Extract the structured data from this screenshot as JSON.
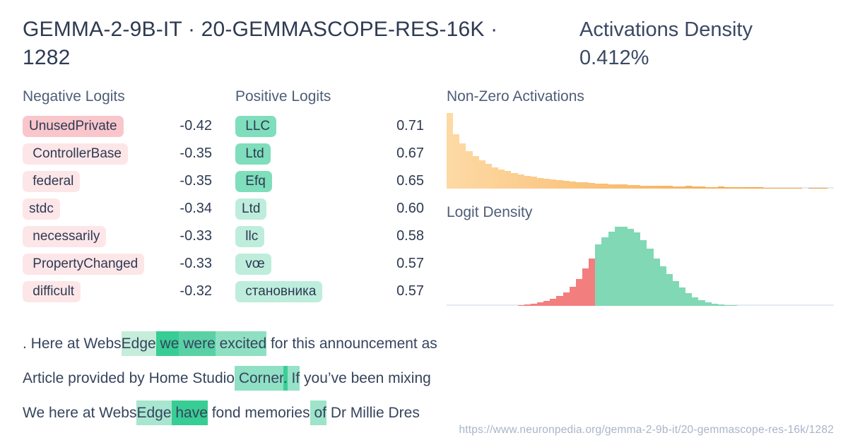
{
  "header": {
    "title": "GEMMA-2-9B-IT · 20-GEMMASCOPE-RES-16K · 1282",
    "density": "Activations Density 0.412%"
  },
  "colors": {
    "neg_chip_strong": "#F9C6CC",
    "neg_chip_light": "#FDE6E8",
    "pos_chip_strong": "#7FDEBC",
    "pos_chip_light": "#BEEDDC",
    "orange_start": "#FDD9A5",
    "orange_end": "#F49B33",
    "red_bar": "#F37E7E",
    "green_bar": "#80D8B4",
    "baseline": "#E4E9F1",
    "title_text": "#2E3A52",
    "section_text": "#4E5D78",
    "url_text": "#A8B5C7"
  },
  "negative_logits": {
    "title": "Negative Logits",
    "items": [
      {
        "token": "UnusedPrivate",
        "value": "-0.42",
        "strong": true
      },
      {
        "token": " ControllerBase",
        "value": "-0.35",
        "strong": false
      },
      {
        "token": " federal",
        "value": "-0.35",
        "strong": false
      },
      {
        "token": "stdc",
        "value": "-0.34",
        "strong": false
      },
      {
        "token": " necessarily",
        "value": "-0.33",
        "strong": false
      },
      {
        "token": " PropertyChanged",
        "value": "-0.33",
        "strong": false
      },
      {
        "token": " difficult",
        "value": "-0.32",
        "strong": false
      }
    ]
  },
  "positive_logits": {
    "title": "Positive Logits",
    "items": [
      {
        "token": " LLC",
        "value": "0.71",
        "strong": true
      },
      {
        "token": " Ltd",
        "value": "0.67",
        "strong": true
      },
      {
        "token": " Efq",
        "value": "0.65",
        "strong": true
      },
      {
        "token": "Ltd",
        "value": "0.60",
        "strong": false
      },
      {
        "token": " llc",
        "value": "0.58",
        "strong": false
      },
      {
        "token": " vœ",
        "value": "0.57",
        "strong": false
      },
      {
        "token": " становника",
        "value": "0.57",
        "strong": false
      }
    ]
  },
  "chart_data": [
    {
      "type": "bar",
      "title": "Non-Zero Activations",
      "ylim": [
        0,
        1
      ],
      "grid": false,
      "color_gradient": [
        "#FDD9A5",
        "#F49B33"
      ],
      "values": [
        1.0,
        0.72,
        0.6,
        0.5,
        0.43,
        0.375,
        0.325,
        0.285,
        0.255,
        0.23,
        0.205,
        0.185,
        0.17,
        0.155,
        0.142,
        0.13,
        0.12,
        0.11,
        0.102,
        0.094,
        0.087,
        0.08,
        0.075,
        0.07,
        0.065,
        0.06,
        0.056,
        0.052,
        0.048,
        0.045,
        0.042,
        0.04,
        0.037,
        0.035,
        0.033,
        0.031,
        0.029,
        0.034,
        0.027,
        0.025,
        0.023,
        0.022,
        0.027,
        0.02,
        0.019,
        0.018,
        0.017,
        0.016,
        0.015,
        0.014,
        0.013,
        0.013,
        0.012,
        0.012,
        0.011,
        0,
        0.013,
        0.013,
        0.013,
        0
      ]
    },
    {
      "type": "bar",
      "title": "Logit Density",
      "ylim": [
        0,
        1
      ],
      "grid": false,
      "negative_color": "#F37E7E",
      "positive_color": "#80D8B4",
      "split_index": 23,
      "values": [
        0,
        0,
        0,
        0,
        0,
        0,
        0,
        0,
        0,
        0,
        0,
        0.012,
        0.018,
        0.03,
        0.045,
        0.065,
        0.09,
        0.125,
        0.17,
        0.245,
        0.34,
        0.47,
        0.6,
        0.78,
        0.87,
        0.935,
        1.0,
        1.0,
        0.975,
        0.925,
        0.83,
        0.72,
        0.6,
        0.5,
        0.4,
        0.315,
        0.235,
        0.165,
        0.11,
        0.07,
        0.045,
        0.03,
        0.018,
        0.01,
        0.008,
        0,
        0,
        0,
        0,
        0,
        0,
        0,
        0,
        0,
        0,
        0,
        0,
        0,
        0,
        0
      ]
    }
  ],
  "samples": {
    "lines": [
      {
        "tokens": [
          {
            "t": ". Here at Webs"
          },
          {
            "t": "Edge",
            "bg": "#C5EDDA"
          },
          {
            "t": " we",
            "bg": "#38CD94"
          },
          {
            "t": " were",
            "bg": "#59D1A5"
          },
          {
            "t": " excited",
            "bg": "#8FE0C2"
          },
          {
            "t": " for this announcement as"
          }
        ]
      },
      {
        "tokens": [
          {
            "t": "Article provided by Home Studio"
          },
          {
            "t": " Corner",
            "bg": "#8FE0C4"
          },
          {
            "t": ".",
            "bg": "#3CCE96"
          },
          {
            "t": " If",
            "bg": "#97E2C8"
          },
          {
            "t": " you’ve been mixing"
          }
        ]
      },
      {
        "tokens": [
          {
            "t": "We here at Webs"
          },
          {
            "t": "Edge",
            "bg": "#A8E6CF"
          },
          {
            "t": " have",
            "bg": "#38CD94"
          },
          {
            "t": " fond memories"
          },
          {
            "t": " of",
            "bg": "#9DE4CA"
          },
          {
            "t": " Dr Millie Dres"
          }
        ]
      }
    ]
  },
  "footer": {
    "url": "https://www.neuronpedia.org/gemma-2-9b-it/20-gemmascope-res-16k/1282"
  }
}
